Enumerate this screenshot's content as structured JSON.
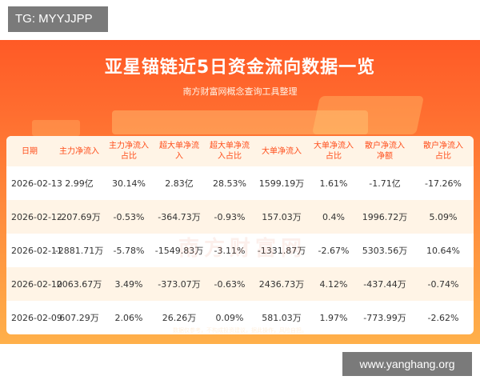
{
  "tg_tag": "TG: MYYJJPP",
  "title": "亚星锚链近5日资金流向数据一览",
  "subtitle": "南方财富网概念查询工具整理",
  "watermark": "南方财富网",
  "disclaimer": "数据仅参考，不构成投资建议，据此操作，风险自担。",
  "site_tag": "www.yanghang.org",
  "table": {
    "headers": [
      [
        "日期"
      ],
      [
        "主力净流入"
      ],
      [
        "主力净流入",
        "占比"
      ],
      [
        "超大单净流",
        "入"
      ],
      [
        "超大单净流",
        "入占比"
      ],
      [
        "大单净流入"
      ],
      [
        "大单净流入",
        "占比"
      ],
      [
        "散户净流入",
        "净额"
      ],
      [
        "散户净流入",
        "占比"
      ]
    ],
    "rows": [
      [
        "2026-02-13",
        "2.99亿",
        "30.14%",
        "2.83亿",
        "28.53%",
        "1599.19万",
        "1.61%",
        "-1.71亿",
        "-17.26%"
      ],
      [
        "2026-02-12",
        "-207.69万",
        "-0.53%",
        "-364.73万",
        "-0.93%",
        "157.03万",
        "0.4%",
        "1996.72万",
        "5.09%"
      ],
      [
        "2026-02-11",
        "-2881.71万",
        "-5.78%",
        "-1549.83万",
        "-3.11%",
        "-1331.87万",
        "-2.67%",
        "5303.56万",
        "10.64%"
      ],
      [
        "2026-02-10",
        "2063.67万",
        "3.49%",
        "-373.07万",
        "-0.63%",
        "2436.73万",
        "4.12%",
        "-437.44万",
        "-0.74%"
      ],
      [
        "2026-02-09",
        "607.29万",
        "2.06%",
        "26.26万",
        "0.09%",
        "581.03万",
        "1.97%",
        "-773.99万",
        "-2.62%"
      ]
    ]
  },
  "colors": {
    "header_text": "#ff4d1a",
    "banner_top": "#ff5a26",
    "banner_bottom": "#ffb04a",
    "row_alt": "#fff4e6"
  }
}
